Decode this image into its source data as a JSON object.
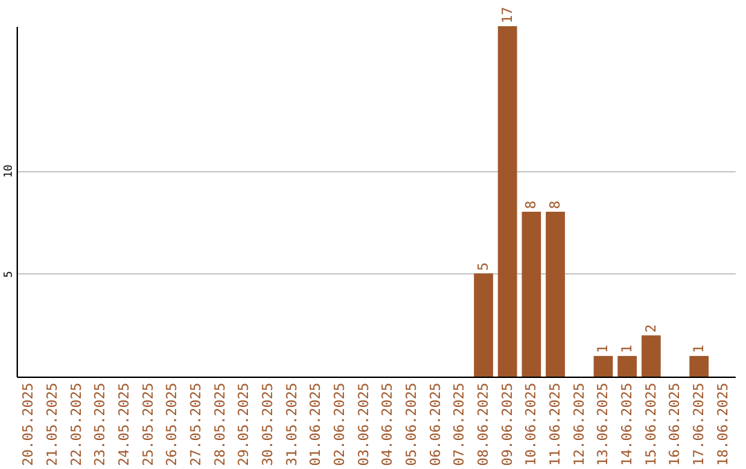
{
  "chart_data": {
    "type": "bar",
    "categories": [
      "20.05.2025",
      "21.05.2025",
      "22.05.2025",
      "23.05.2025",
      "24.05.2025",
      "25.05.2025",
      "26.05.2025",
      "27.05.2025",
      "28.05.2025",
      "29.05.2025",
      "30.05.2025",
      "31.05.2025",
      "01.06.2025",
      "02.06.2025",
      "03.06.2025",
      "04.06.2025",
      "05.06.2025",
      "06.06.2025",
      "07.06.2025",
      "08.06.2025",
      "09.06.2025",
      "10.06.2025",
      "11.06.2025",
      "12.06.2025",
      "13.06.2025",
      "14.06.2025",
      "15.06.2025",
      "16.06.2025",
      "17.06.2025",
      "18.06.2025"
    ],
    "values": [
      null,
      null,
      null,
      null,
      null,
      null,
      null,
      null,
      null,
      null,
      null,
      null,
      null,
      null,
      null,
      null,
      null,
      null,
      null,
      5,
      17,
      8,
      8,
      null,
      1,
      1,
      2,
      null,
      1,
      null
    ],
    "color": "#a0572a",
    "ylim": [
      0,
      17
    ],
    "yticks": [
      5,
      10
    ],
    "grid": "y",
    "data_labels": true
  }
}
